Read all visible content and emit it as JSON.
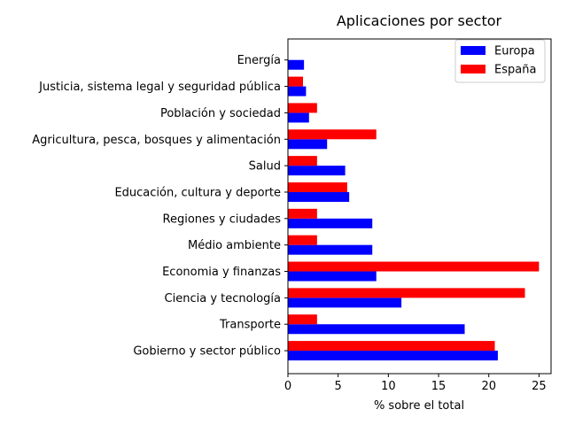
{
  "chart_data": {
    "type": "bar",
    "orientation": "horizontal",
    "title": "Aplicaciones por sector",
    "xlabel": "% sobre el total",
    "ylabel": "",
    "xlim": [
      0,
      26.2
    ],
    "xticks": [
      0,
      5,
      10,
      15,
      20,
      25
    ],
    "grid": false,
    "legend_position": "top-right",
    "categories": [
      "Gobierno y sector público",
      "Transporte",
      "Ciencia y tecnología",
      "Economia y finanzas",
      "Médio ambiente",
      "Regiones y ciudades",
      "Educación, cultura y deporte",
      "Salud",
      "Agricultura, pesca, bosques y alimentación",
      "Población y sociedad",
      "Justicia, sistema legal y seguridad pública",
      "Energía"
    ],
    "series": [
      {
        "name": "Europa",
        "color": "#0000ff",
        "values": [
          20.9,
          17.6,
          11.3,
          8.8,
          8.4,
          8.4,
          6.1,
          5.7,
          3.9,
          2.1,
          1.8,
          1.6
        ]
      },
      {
        "name": "España",
        "color": "#ff0000",
        "values": [
          20.6,
          2.9,
          23.6,
          25.0,
          2.9,
          2.9,
          5.9,
          2.9,
          8.8,
          2.9,
          1.5,
          0.0
        ]
      }
    ]
  }
}
